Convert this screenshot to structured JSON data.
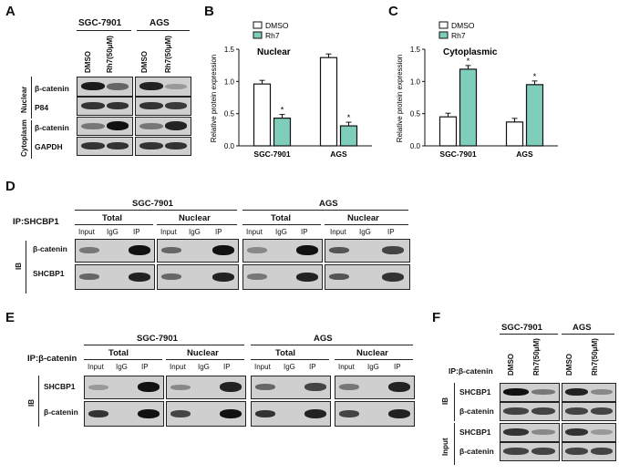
{
  "panel_letters": {
    "a": "A",
    "b": "B",
    "c": "C",
    "d": "D",
    "e": "E",
    "f": "F"
  },
  "panelA": {
    "groups": [
      "SGC-7901",
      "AGS"
    ],
    "lanes": [
      "DMSO",
      "Rh7(50μM)",
      "DMSO",
      "Rh7(50μM)"
    ],
    "fractions": [
      "Nuclear",
      "Cytoplasm"
    ],
    "rows": [
      "β-catenin",
      "P84",
      "β-catenin",
      "GAPDH"
    ]
  },
  "panelD": {
    "ip": "IP:SHCBP1",
    "ib": "IB",
    "groups": [
      "SGC-7901",
      "AGS"
    ],
    "fractions": [
      "Total",
      "Nuclear",
      "Total",
      "Nuclear"
    ],
    "lanes": [
      "Input",
      "IgG",
      "IP"
    ],
    "rows": [
      "β-catenin",
      "SHCBP1"
    ]
  },
  "panelE": {
    "ip": "IP:β-catenin",
    "ib": "IB",
    "groups": [
      "SGC-7901",
      "AGS"
    ],
    "fractions": [
      "Total",
      "Nuclear",
      "Total",
      "Nuclear"
    ],
    "lanes": [
      "Input",
      "IgG",
      "IP"
    ],
    "rows": [
      "SHCBP1",
      "β-catenin"
    ]
  },
  "panelF": {
    "ip": "IP:β-catenin",
    "groups": [
      "SGC-7901",
      "AGS"
    ],
    "lanes": [
      "DMSO",
      "Rh7(50μM)",
      "DMSO",
      "Rh7(50μM)"
    ],
    "sections": [
      "IB",
      "Input"
    ],
    "rows": [
      "SHCBP1",
      "β-catenin",
      "SHCBP1",
      "β-catenin"
    ]
  },
  "chart_data": [
    {
      "type": "bar",
      "title": "Nuclear",
      "ylabel": "Relative protein expression",
      "categories": [
        "SGC-7901",
        "AGS"
      ],
      "ylim": [
        0,
        1.5
      ],
      "yticks": [
        "0.0",
        "0.5",
        "1.0",
        "1.5"
      ],
      "series": [
        {
          "name": "DMSO",
          "values": [
            0.96,
            1.37
          ],
          "color": "#ffffff"
        },
        {
          "name": "Rh7",
          "values": [
            0.43,
            0.31
          ],
          "color": "#7fcdbb"
        }
      ],
      "annotations": [
        "*",
        "*"
      ],
      "legend": "top-left"
    },
    {
      "type": "bar",
      "title": "Cytoplasmic",
      "ylabel": "Relative protein expression",
      "categories": [
        "SGC-7901",
        "AGS"
      ],
      "ylim": [
        0,
        1.5
      ],
      "yticks": [
        "0.0",
        "0.5",
        "1.0",
        "1.5"
      ],
      "series": [
        {
          "name": "DMSO",
          "values": [
            0.45,
            0.37
          ],
          "color": "#ffffff"
        },
        {
          "name": "Rh7",
          "values": [
            1.19,
            0.95
          ],
          "color": "#7fcdbb"
        }
      ],
      "annotations": [
        "*",
        "*"
      ],
      "legend": "top-left"
    }
  ]
}
